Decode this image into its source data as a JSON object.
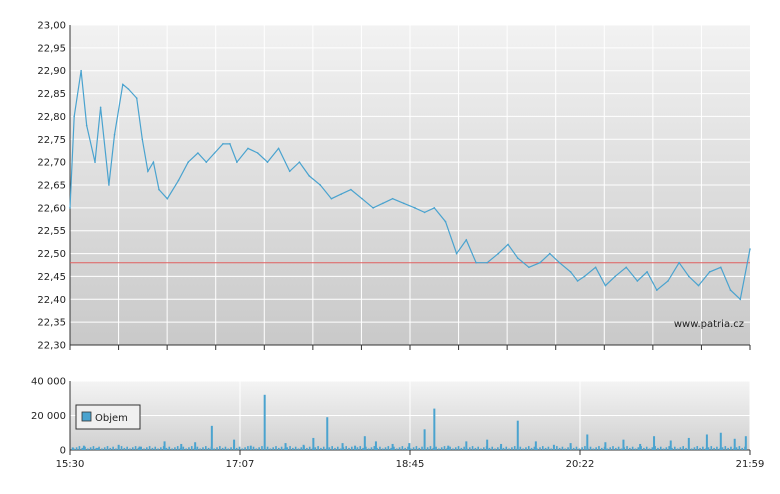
{
  "chart_data": [
    {
      "type": "line",
      "title": "",
      "xlabel": "",
      "ylabel": "",
      "ylim": [
        22.3,
        23.0
      ],
      "y_ticks": [
        "23,00",
        "22,95",
        "22,90",
        "22,85",
        "22,80",
        "22,75",
        "22,70",
        "22,65",
        "22,60",
        "22,55",
        "22,50",
        "22,45",
        "22,40",
        "22,35",
        "22,30"
      ],
      "reference_line": {
        "value": 22.48,
        "color": "#e06060"
      },
      "watermark": "www.patria.cz",
      "line_color": "#4aa3cf",
      "grid": true,
      "series": [
        {
          "x_minutes_since_1530": [
            0,
            3,
            8,
            12,
            18,
            22,
            28,
            32,
            38,
            42,
            48,
            52,
            56,
            60,
            64,
            70,
            78,
            85,
            92,
            98,
            104,
            110,
            115,
            120,
            128,
            135,
            142,
            150,
            158,
            165,
            172,
            180,
            188,
            195,
            202,
            210,
            218,
            225,
            232,
            240,
            248,
            255,
            262,
            270,
            278,
            285,
            292,
            300,
            308,
            315,
            322,
            330,
            338,
            345,
            352,
            360,
            365,
            370,
            378,
            385,
            392,
            400,
            408,
            415,
            422,
            430,
            438,
            445,
            452,
            460,
            468,
            475,
            482,
            489
          ],
          "values": [
            22.6,
            22.8,
            22.9,
            22.78,
            22.7,
            22.82,
            22.65,
            22.76,
            22.87,
            22.86,
            22.84,
            22.75,
            22.68,
            22.7,
            22.64,
            22.62,
            22.66,
            22.7,
            22.72,
            22.7,
            22.72,
            22.74,
            22.74,
            22.7,
            22.73,
            22.72,
            22.7,
            22.73,
            22.68,
            22.7,
            22.67,
            22.65,
            22.62,
            22.63,
            22.64,
            22.62,
            22.6,
            22.61,
            22.62,
            22.61,
            22.6,
            22.59,
            22.6,
            22.57,
            22.5,
            22.53,
            22.48,
            22.48,
            22.5,
            22.52,
            22.49,
            22.47,
            22.48,
            22.5,
            22.48,
            22.46,
            22.44,
            22.45,
            22.47,
            22.43,
            22.45,
            22.47,
            22.44,
            22.46,
            22.42,
            22.44,
            22.48,
            22.45,
            22.43,
            22.46,
            22.47,
            22.42,
            22.4,
            22.51
          ]
        }
      ]
    },
    {
      "type": "bar",
      "title": "",
      "ylim": [
        0,
        40000
      ],
      "y_ticks": [
        "40 000",
        "20 000",
        "0"
      ],
      "x_ticks": [
        "15:30",
        "17:07",
        "18:45",
        "20:22",
        "21:59"
      ],
      "legend": {
        "label": "Objem",
        "position": "left",
        "color": "#4aa3cf"
      },
      "series": [
        {
          "name": "Objem",
          "x_minutes_since_1530": [
            2,
            10,
            20,
            35,
            50,
            68,
            80,
            90,
            102,
            118,
            130,
            140,
            155,
            168,
            175,
            185,
            196,
            205,
            212,
            220,
            232,
            244,
            255,
            262,
            272,
            285,
            300,
            310,
            322,
            335,
            348,
            360,
            372,
            385,
            398,
            410,
            420,
            432,
            445,
            458,
            468,
            478,
            486
          ],
          "values": [
            1500,
            2500,
            1200,
            3000,
            2000,
            5000,
            3500,
            4500,
            14000,
            6000,
            2500,
            32000,
            4000,
            3000,
            7000,
            19000,
            4000,
            2500,
            8000,
            5000,
            3500,
            4000,
            12000,
            24000,
            2500,
            5000,
            6000,
            3500,
            17000,
            5000,
            3000,
            4000,
            9000,
            4500,
            6000,
            3500,
            8000,
            5500,
            7000,
            9000,
            10000,
            6500,
            8000
          ]
        }
      ]
    }
  ]
}
